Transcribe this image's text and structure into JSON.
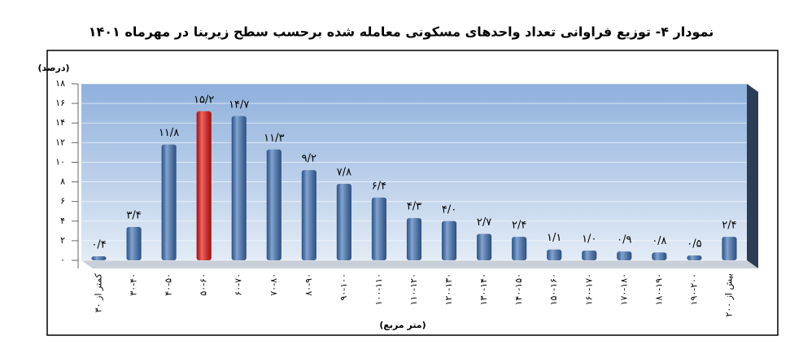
{
  "chart_data": {
    "type": "bar",
    "title": "نمودار ۴- توزیع فراوانی تعداد واحدهای مسکونی معامله شده برحسب سطح زیربنا در مهرماه ۱۴۰۱",
    "y_label": "(درصد)",
    "x_label": "(متر مربع)",
    "categories": [
      "کمتر از ۳۰",
      "۳۰-۴۰",
      "۴۰-۵۰",
      "۵۰-۶۰",
      "۶۰-۷۰",
      "۷۰-۸۰",
      "۸۰-۹۰",
      "۹۰-۱۰۰",
      "۱۰۰-۱۱۰",
      "۱۱۰-۱۲۰",
      "۱۲۰-۱۳۰",
      "۱۳۰-۱۴۰",
      "۱۴۰-۱۵۰",
      "۱۵۰-۱۶۰",
      "۱۶۰-۱۷۰",
      "۱۷۰-۱۸۰",
      "۱۸۰-۱۹۰",
      "۱۹۰-۲۰۰",
      "بیش از ۲۰۰"
    ],
    "values": [
      0.4,
      3.4,
      11.8,
      15.2,
      14.7,
      11.3,
      9.2,
      7.8,
      6.4,
      4.3,
      4.0,
      2.7,
      2.4,
      1.1,
      1.0,
      0.9,
      0.8,
      0.5,
      2.4
    ],
    "value_labels": [
      "۰/۴",
      "۳/۴",
      "۱۱/۸",
      "۱۵/۲",
      "۱۴/۷",
      "۱۱/۳",
      "۹/۲",
      "۷/۸",
      "۶/۴",
      "۴/۳",
      "۴/۰",
      "۲/۷",
      "۲/۴",
      "۱/۱",
      "۱/۰",
      "۰/۹",
      "۰/۸",
      "۰/۵",
      "۲/۴"
    ],
    "colors": [
      "#3f73b8",
      "#3f73b8",
      "#3f73b8",
      "#e8130f",
      "#3f73b8",
      "#3f73b8",
      "#3f73b8",
      "#3f73b8",
      "#3f73b8",
      "#3f73b8",
      "#3f73b8",
      "#3f73b8",
      "#3f73b8",
      "#3f73b8",
      "#3f73b8",
      "#3f73b8",
      "#3f73b8",
      "#3f73b8",
      "#3f73b8"
    ],
    "ylim": [
      0,
      18
    ],
    "yticks": [
      {
        "value": 0,
        "label": "۰"
      },
      {
        "value": 2,
        "label": "۲"
      },
      {
        "value": 4,
        "label": "۴"
      },
      {
        "value": 6,
        "label": "۶"
      },
      {
        "value": 8,
        "label": "۸"
      },
      {
        "value": 10,
        "label": "۱۰"
      },
      {
        "value": 12,
        "label": "۱۲"
      },
      {
        "value": 14,
        "label": "۱۴"
      },
      {
        "value": 16,
        "label": "۱۶"
      },
      {
        "value": 18,
        "label": "۱۸"
      }
    ],
    "grid": true
  }
}
